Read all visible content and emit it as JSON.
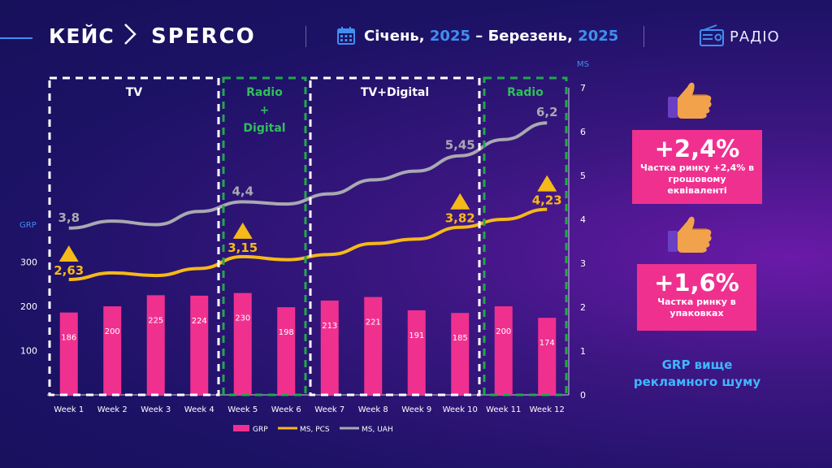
{
  "header": {
    "case_label": "КЕЙС",
    "brand": "SPERCO",
    "period_start_month": "Січень,",
    "period_start_year": "2025",
    "period_dash": "–",
    "period_end_month": "Березень,",
    "period_end_year": "2025",
    "media_label": "РАДІО",
    "icons": [
      "calendar-icon",
      "radio-icon",
      "chevron-right-icon"
    ]
  },
  "cards": [
    {
      "value": "+2,4%",
      "text": "Частка ринку +2,4% в грошовому еквіваленті",
      "icon": "thumbs-up-icon"
    },
    {
      "value": "+1,6%",
      "text": "Частка ринку в упаковках",
      "icon": "thumbs-up-icon"
    }
  ],
  "note": "GRP вище рекламного шуму",
  "colors": {
    "grp": "#f0308f",
    "ms_pcs": "#f5b919",
    "ms_uah": "#a9a9b2",
    "accent_blue": "#3f8ff0",
    "tv_frame": "#ffffff",
    "radio_frame": "#22a84a"
  },
  "chart_data": {
    "type": "bar",
    "categories": [
      "Week 1",
      "Week 2",
      "Week 3",
      "Week 4",
      "Week 5",
      "Week 6",
      "Week 7",
      "Week 8",
      "Week 9",
      "Week 10",
      "Week 11",
      "Week 12"
    ],
    "series": [
      {
        "name": "GRP",
        "type": "bar",
        "axis": "left",
        "values": [
          186,
          200,
          225,
          224,
          230,
          198,
          213,
          221,
          191,
          185,
          200,
          174
        ]
      },
      {
        "name": "MS, PCS",
        "type": "line",
        "axis": "right",
        "values": [
          2.63,
          2.78,
          2.72,
          2.88,
          3.15,
          3.08,
          3.2,
          3.45,
          3.55,
          3.82,
          4.0,
          4.23
        ]
      },
      {
        "name": "MS, UAH",
        "type": "line",
        "axis": "right",
        "values": [
          3.8,
          3.96,
          3.88,
          4.18,
          4.4,
          4.35,
          4.58,
          4.9,
          5.1,
          5.45,
          5.82,
          6.2
        ]
      }
    ],
    "point_labels": [
      {
        "series": "MS, PCS",
        "index": 0,
        "text": "2,63"
      },
      {
        "series": "MS, PCS",
        "index": 4,
        "text": "3,15"
      },
      {
        "series": "MS, PCS",
        "index": 9,
        "text": "3,82"
      },
      {
        "series": "MS, PCS",
        "index": 11,
        "text": "4,23"
      },
      {
        "series": "MS, UAH",
        "index": 0,
        "text": "3,8"
      },
      {
        "series": "MS, UAH",
        "index": 4,
        "text": "4,4"
      },
      {
        "series": "MS, UAH",
        "index": 9,
        "text": "5,45"
      },
      {
        "series": "MS, UAH",
        "index": 11,
        "text": "6,2"
      }
    ],
    "markers": [
      0,
      4,
      9,
      11
    ],
    "y_left": {
      "label": "GRP",
      "ticks": [
        100,
        200,
        300
      ],
      "range": [
        0,
        350
      ]
    },
    "y_right": {
      "label": "MS",
      "ticks": [
        0,
        1,
        2,
        3,
        4,
        5,
        6,
        7
      ],
      "range": [
        0,
        7
      ]
    },
    "periods": [
      {
        "label_lines": [
          "TV"
        ],
        "start": 0,
        "end": 3,
        "kind": "tv"
      },
      {
        "label_lines": [
          "Radio",
          "+",
          "Digital"
        ],
        "start": 4,
        "end": 5,
        "kind": "radio"
      },
      {
        "label_lines": [
          "TV+Digital"
        ],
        "start": 6,
        "end": 9,
        "kind": "tv"
      },
      {
        "label_lines": [
          "Radio"
        ],
        "start": 10,
        "end": 11,
        "kind": "radio"
      }
    ],
    "legend": [
      "GRP",
      "MS, PCS",
      "MS, UAH"
    ],
    "legend_position": "bottom"
  }
}
